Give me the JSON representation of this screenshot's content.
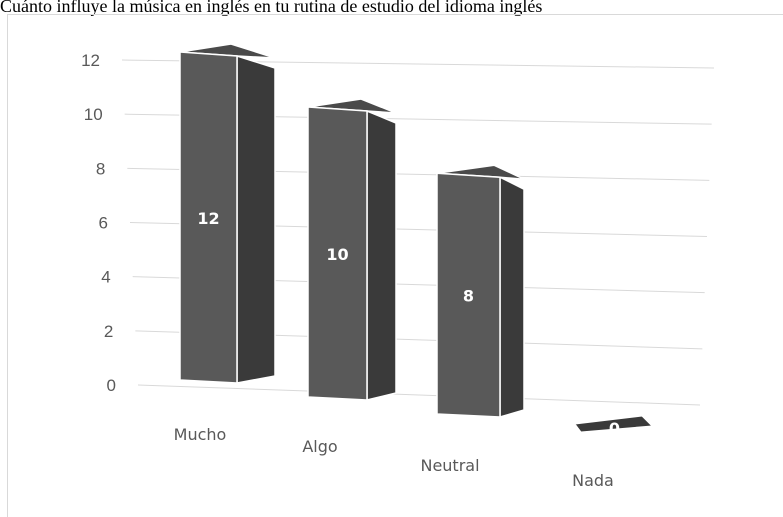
{
  "chart_data": {
    "type": "bar",
    "title": "Cuánto influye la música en inglés en tu rutina de estudio del idioma inglés",
    "categories": [
      "Mucho",
      "Algo",
      "Neutral",
      "Nada"
    ],
    "values": [
      12,
      10,
      8,
      0
    ],
    "data_labels": [
      "12",
      "10",
      "8",
      "0"
    ],
    "yticks": [
      "0",
      "2",
      "4",
      "6",
      "8",
      "10",
      "12"
    ],
    "ylim": [
      0,
      12
    ],
    "grid": true,
    "legend": "none",
    "style": "3d-perspective",
    "colors": {
      "bar_front": "#595959",
      "bar_side": "#3a3a3a",
      "bar_top": "#4a4a4a",
      "grid": "#d9d9d9",
      "text": "#595959"
    }
  }
}
